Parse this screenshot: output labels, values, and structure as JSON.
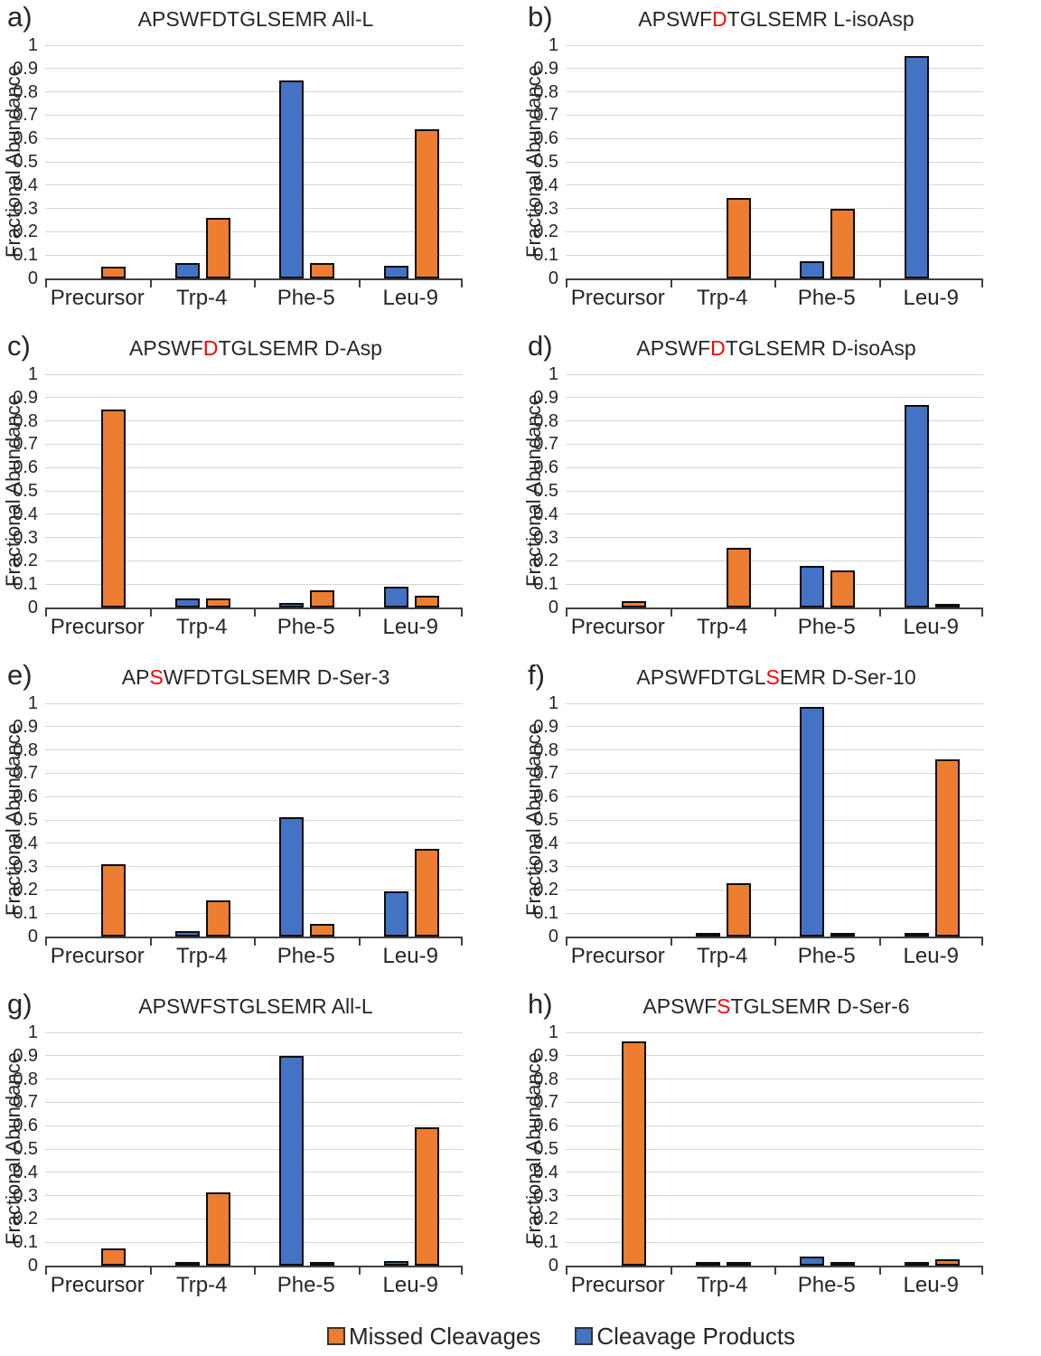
{
  "figure": {
    "y_axis_label": "Fractional Abundance",
    "y_ticks": [
      "0",
      "0.1",
      "0.2",
      "0.3",
      "0.4",
      "0.5",
      "0.6",
      "0.7",
      "0.8",
      "0.9",
      "1"
    ],
    "categories": [
      "Precursor",
      "Trp-4",
      "Phe-5",
      "Leu-9"
    ],
    "colors": {
      "missed_cleavages": "#ED7D31",
      "cleavage_products": "#4472C4",
      "highlight_letter": "#FF0000",
      "gridline": "#D6D6D6",
      "axis": "#404040",
      "bar_border": "#0D0D0D"
    },
    "legend": [
      {
        "label": "Missed Cleavages",
        "color": "#ED7D31"
      },
      {
        "label": "Cleavage Products",
        "color": "#4472C4"
      }
    ]
  },
  "chart_data": [
    {
      "type": "bar",
      "panel_letter": "a)",
      "title": "APSWFDTGLSEMR All-L",
      "title_segments": [
        {
          "text": "APSWFDTGLSEMR All-L",
          "red": false
        }
      ],
      "categories": [
        "Precursor",
        "Trp-4",
        "Phe-5",
        "Leu-9"
      ],
      "series": [
        {
          "name": "Cleavage Products",
          "color": "#4472C4",
          "values": [
            0,
            0.065,
            0.85,
            0.055
          ]
        },
        {
          "name": "Missed Cleavages",
          "color": "#ED7D31",
          "values": [
            0.05,
            0.26,
            0.065,
            0.64
          ]
        }
      ],
      "ylabel": "Fractional Abundance",
      "ylim": [
        0,
        1
      ]
    },
    {
      "type": "bar",
      "panel_letter": "b)",
      "title": "APSWFDTGLSEMR L-isoAsp",
      "title_segments": [
        {
          "text": "APSWF",
          "red": false
        },
        {
          "text": "D",
          "red": true
        },
        {
          "text": "TGLSEMR L-isoAsp",
          "red": false
        }
      ],
      "categories": [
        "Precursor",
        "Trp-4",
        "Phe-5",
        "Leu-9"
      ],
      "series": [
        {
          "name": "Cleavage Products",
          "color": "#4472C4",
          "values": [
            0,
            0,
            0.075,
            0.955
          ]
        },
        {
          "name": "Missed Cleavages",
          "color": "#ED7D31",
          "values": [
            0,
            0.345,
            0.3,
            0
          ]
        }
      ],
      "ylabel": "Fractional Abundance",
      "ylim": [
        0,
        1
      ]
    },
    {
      "type": "bar",
      "panel_letter": "c)",
      "title": "APSWFDTGLSEMR D-Asp",
      "title_segments": [
        {
          "text": "APSWF",
          "red": false
        },
        {
          "text": "D",
          "red": true
        },
        {
          "text": "TGLSEMR D-Asp",
          "red": false
        }
      ],
      "categories": [
        "Precursor",
        "Trp-4",
        "Phe-5",
        "Leu-9"
      ],
      "series": [
        {
          "name": "Cleavage Products",
          "color": "#4472C4",
          "values": [
            0,
            0.04,
            0.018,
            0.09
          ]
        },
        {
          "name": "Missed Cleavages",
          "color": "#ED7D31",
          "values": [
            0.85,
            0.04,
            0.075,
            0.05
          ]
        }
      ],
      "ylabel": "Fractional Abundance",
      "ylim": [
        0,
        1
      ]
    },
    {
      "type": "bar",
      "panel_letter": "d)",
      "title": "APSWFDTGLSEMR D-isoAsp",
      "title_segments": [
        {
          "text": "APSWF",
          "red": false
        },
        {
          "text": "D",
          "red": true
        },
        {
          "text": "TGLSEMR D-isoAsp",
          "red": false
        }
      ],
      "categories": [
        "Precursor",
        "Trp-4",
        "Phe-5",
        "Leu-9"
      ],
      "series": [
        {
          "name": "Cleavage Products",
          "color": "#4472C4",
          "values": [
            0,
            0,
            0.18,
            0.87
          ]
        },
        {
          "name": "Missed Cleavages",
          "color": "#ED7D31",
          "values": [
            0.028,
            0.255,
            0.16,
            0.013
          ]
        }
      ],
      "ylabel": "Fractional Abundance",
      "ylim": [
        0,
        1
      ]
    },
    {
      "type": "bar",
      "panel_letter": "e)",
      "title": "APSWFDTGLSEMR D-Ser-3",
      "title_segments": [
        {
          "text": "AP",
          "red": false
        },
        {
          "text": "S",
          "red": true
        },
        {
          "text": "WFDTGLSEMR D-Ser-3",
          "red": false
        }
      ],
      "categories": [
        "Precursor",
        "Trp-4",
        "Phe-5",
        "Leu-9"
      ],
      "series": [
        {
          "name": "Cleavage Products",
          "color": "#4472C4",
          "values": [
            0,
            0.025,
            0.51,
            0.195
          ]
        },
        {
          "name": "Missed Cleavages",
          "color": "#ED7D31",
          "values": [
            0.31,
            0.155,
            0.055,
            0.375
          ]
        }
      ],
      "ylabel": "Fractional Abundance",
      "ylim": [
        0,
        1
      ]
    },
    {
      "type": "bar",
      "panel_letter": "f)",
      "title": "APSWFDTGLSEMR D-Ser-10",
      "title_segments": [
        {
          "text": "APSWFDTGL",
          "red": false
        },
        {
          "text": "S",
          "red": true
        },
        {
          "text": "EMR D-Ser-10",
          "red": false
        }
      ],
      "categories": [
        "Precursor",
        "Trp-4",
        "Phe-5",
        "Leu-9"
      ],
      "series": [
        {
          "name": "Cleavage Products",
          "color": "#4472C4",
          "values": [
            0,
            0.013,
            0.985,
            0.013
          ]
        },
        {
          "name": "Missed Cleavages",
          "color": "#ED7D31",
          "values": [
            0,
            0.23,
            0.013,
            0.76
          ]
        }
      ],
      "ylabel": "Fractional Abundance",
      "ylim": [
        0,
        1
      ]
    },
    {
      "type": "bar",
      "panel_letter": "g)",
      "title": "APSWFSTGLSEMR All-L",
      "title_segments": [
        {
          "text": "APSWFSTGLSEMR All-L",
          "red": false
        }
      ],
      "categories": [
        "Precursor",
        "Trp-4",
        "Phe-5",
        "Leu-9"
      ],
      "series": [
        {
          "name": "Cleavage Products",
          "color": "#4472C4",
          "values": [
            0,
            0.013,
            0.9,
            0.018
          ]
        },
        {
          "name": "Missed Cleavages",
          "color": "#ED7D31",
          "values": [
            0.075,
            0.315,
            0.013,
            0.595
          ]
        }
      ],
      "ylabel": "Fractional Abundance",
      "ylim": [
        0,
        1
      ]
    },
    {
      "type": "bar",
      "panel_letter": "h)",
      "title": "APSWFSTGLSEMR D-Ser-6",
      "title_segments": [
        {
          "text": "APSWF",
          "red": false
        },
        {
          "text": "S",
          "red": true
        },
        {
          "text": "TGLSEMR D-Ser-6",
          "red": false
        }
      ],
      "categories": [
        "Precursor",
        "Trp-4",
        "Phe-5",
        "Leu-9"
      ],
      "series": [
        {
          "name": "Cleavage Products",
          "color": "#4472C4",
          "values": [
            0,
            0.005,
            0.04,
            0.008
          ]
        },
        {
          "name": "Missed Cleavages",
          "color": "#ED7D31",
          "values": [
            0.96,
            0.015,
            0.007,
            0.027
          ]
        }
      ],
      "ylabel": "Fractional Abundance",
      "ylim": [
        0,
        1
      ]
    }
  ]
}
